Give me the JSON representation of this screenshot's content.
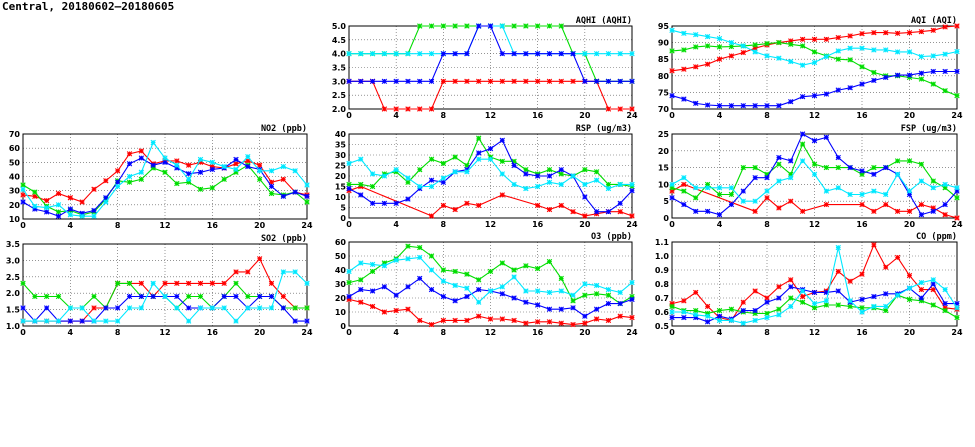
{
  "title": "Central, 20180602–20180605",
  "colors": {
    "red": "#ff0000",
    "green": "#00dd00",
    "blue": "#0000ff",
    "cyan": "#00e8ff"
  },
  "chart_data": [
    {
      "id": "no2",
      "type": "line",
      "title": "NO2 (ppb)",
      "ylim": [
        10,
        70
      ],
      "yticks": [
        "10",
        "20",
        "30",
        "40",
        "50",
        "60",
        "70"
      ],
      "xlim": [
        0,
        24
      ],
      "xticks": [
        "0",
        "4",
        "8",
        "12",
        "16",
        "20",
        "24"
      ],
      "grid": true,
      "series": [
        {
          "name": "red",
          "values": [
            27,
            26,
            23,
            28,
            25,
            22,
            31,
            37,
            44,
            56,
            58,
            49,
            51,
            51,
            48,
            50,
            47,
            46,
            49,
            51,
            48,
            36,
            38,
            29,
            27
          ]
        },
        {
          "name": "green",
          "values": [
            34,
            29,
            19,
            15,
            16,
            13,
            15,
            24,
            37,
            36,
            38,
            46,
            43,
            35,
            36,
            31,
            32,
            38,
            43,
            48,
            38,
            28,
            27,
            29,
            22
          ]
        },
        {
          "name": "blue",
          "values": [
            22,
            17,
            15,
            12,
            17,
            14,
            16,
            25,
            36,
            49,
            53,
            48,
            50,
            46,
            42,
            43,
            45,
            46,
            52,
            47,
            45,
            33,
            26,
            29,
            26
          ]
        },
        {
          "name": "cyan",
          "values": [
            31,
            19,
            18,
            20,
            13,
            12,
            12,
            22,
            33,
            40,
            43,
            64,
            53,
            48,
            38,
            52,
            50,
            47,
            45,
            54,
            44,
            44,
            47,
            44,
            34
          ]
        }
      ]
    },
    {
      "id": "so2",
      "type": "line",
      "title": "SO2 (ppb)",
      "ylim": [
        1.0,
        3.5
      ],
      "yticks": [
        "1.0",
        "1.5",
        "2.0",
        "2.5",
        "3.0",
        "3.5"
      ],
      "xlim": [
        0,
        24
      ],
      "xticks": [
        "0",
        "4",
        "8",
        "12",
        "16",
        "20",
        "24"
      ],
      "grid": true,
      "series": [
        {
          "name": "red",
          "values": [
            1.15,
            1.15,
            1.15,
            1.15,
            1.15,
            1.15,
            1.55,
            1.55,
            2.3,
            2.3,
            2.3,
            1.9,
            2.3,
            2.3,
            2.3,
            2.3,
            2.3,
            2.3,
            2.65,
            2.65,
            3.05,
            2.3,
            1.9,
            1.55,
            1.55
          ]
        },
        {
          "name": "green",
          "values": [
            2.3,
            1.9,
            1.9,
            1.9,
            1.55,
            1.55,
            1.9,
            1.55,
            2.3,
            2.3,
            1.9,
            1.9,
            1.9,
            1.55,
            1.9,
            1.9,
            1.55,
            1.9,
            2.3,
            1.9,
            1.9,
            1.9,
            1.55,
            1.55,
            1.55
          ]
        },
        {
          "name": "blue",
          "values": [
            1.55,
            1.15,
            1.55,
            1.15,
            1.15,
            1.15,
            1.15,
            1.55,
            1.55,
            1.9,
            1.9,
            1.9,
            1.9,
            1.9,
            1.55,
            1.55,
            1.55,
            1.9,
            1.9,
            1.55,
            1.9,
            1.9,
            1.55,
            1.15,
            1.15
          ]
        },
        {
          "name": "cyan",
          "values": [
            1.15,
            1.15,
            1.15,
            1.15,
            1.55,
            1.55,
            1.15,
            1.15,
            1.15,
            1.55,
            1.55,
            2.3,
            1.9,
            1.55,
            1.15,
            1.55,
            1.55,
            1.55,
            1.15,
            1.55,
            1.55,
            1.55,
            2.65,
            2.65,
            2.3
          ]
        }
      ]
    },
    {
      "id": "aqhi",
      "type": "line",
      "title": "AQHI (AQHI)",
      "ylim": [
        2.0,
        5.0
      ],
      "yticks": [
        "2.0",
        "2.5",
        "3.0",
        "3.5",
        "4.0",
        "4.5",
        "5.0"
      ],
      "xlim": [
        0,
        24
      ],
      "xticks": [
        "0",
        "4",
        "8",
        "12",
        "16",
        "20",
        "24"
      ],
      "grid": true,
      "series": [
        {
          "name": "red",
          "values": [
            3,
            3,
            3,
            2,
            2,
            2,
            2,
            2,
            3,
            3,
            3,
            3,
            3,
            3,
            3,
            3,
            3,
            3,
            3,
            3,
            3,
            3,
            2,
            2,
            2
          ]
        },
        {
          "name": "green",
          "values": [
            4,
            4,
            4,
            4,
            4,
            4,
            5,
            5,
            5,
            5,
            5,
            5,
            5,
            5,
            5,
            5,
            5,
            5,
            5,
            4,
            4,
            3,
            3,
            3,
            3
          ]
        },
        {
          "name": "cyan",
          "values": [
            4,
            4,
            4,
            4,
            4,
            4,
            4,
            4,
            4,
            4,
            4,
            5,
            5,
            5,
            4,
            4,
            4,
            4,
            4,
            4,
            4,
            4,
            4,
            4,
            4
          ]
        },
        {
          "name": "blue",
          "values": [
            3,
            3,
            3,
            3,
            3,
            3,
            3,
            3,
            4,
            4,
            4,
            5,
            5,
            4,
            4,
            4,
            4,
            4,
            4,
            4,
            3,
            3,
            3,
            3,
            3
          ]
        }
      ]
    },
    {
      "id": "rsp",
      "type": "line",
      "title": "RSP (ug/m3)",
      "ylim": [
        0,
        40
      ],
      "yticks": [
        "0",
        "5",
        "10",
        "15",
        "20",
        "25",
        "30",
        "35",
        "40"
      ],
      "xlim": [
        0,
        24
      ],
      "xticks": [
        "0",
        "4",
        "8",
        "12",
        "16",
        "20",
        "24"
      ],
      "grid": true,
      "series": [
        {
          "name": "red",
          "values": [
            13,
            15,
            null,
            null,
            null,
            null,
            null,
            1,
            6,
            4,
            7,
            6,
            null,
            11,
            null,
            null,
            6,
            4,
            6,
            3,
            1,
            2,
            3,
            3,
            1
          ]
        },
        {
          "name": "green",
          "values": [
            16,
            16,
            15,
            21,
            22,
            17,
            23,
            28,
            26,
            29,
            25,
            38,
            29,
            27,
            27,
            23,
            21,
            23,
            21,
            20,
            23,
            22,
            16,
            16,
            15
          ]
        },
        {
          "name": "blue",
          "values": [
            14,
            11,
            7,
            7,
            7,
            9,
            14,
            18,
            17,
            22,
            23,
            31,
            33,
            37,
            25,
            21,
            20,
            20,
            23,
            20,
            10,
            3,
            3,
            7,
            13
          ]
        },
        {
          "name": "cyan",
          "values": [
            26,
            28,
            21,
            20,
            23,
            19,
            15,
            15,
            19,
            22,
            22,
            28,
            28,
            21,
            16,
            14,
            15,
            17,
            16,
            20,
            16,
            18,
            14,
            16,
            16
          ]
        }
      ]
    },
    {
      "id": "o3",
      "type": "line",
      "title": "O3 (ppb)",
      "ylim": [
        0,
        60
      ],
      "yticks": [
        "0",
        "10",
        "20",
        "30",
        "40",
        "50",
        "60"
      ],
      "xlim": [
        0,
        24
      ],
      "xticks": [
        "0",
        "4",
        "8",
        "12",
        "16",
        "20",
        "24"
      ],
      "grid": true,
      "series": [
        {
          "name": "red",
          "values": [
            19,
            17,
            14,
            10,
            11,
            12,
            4,
            1,
            4,
            4,
            4,
            7,
            5,
            5,
            4,
            2,
            3,
            3,
            2,
            1,
            2,
            5,
            4,
            7,
            6
          ]
        },
        {
          "name": "green",
          "values": [
            31,
            33,
            39,
            45,
            48,
            57,
            56,
            50,
            40,
            39,
            37,
            33,
            39,
            45,
            40,
            43,
            41,
            46,
            34,
            18,
            22,
            23,
            22,
            16,
            21
          ]
        },
        {
          "name": "blue",
          "values": [
            21,
            26,
            25,
            28,
            22,
            28,
            34,
            26,
            21,
            18,
            21,
            26,
            25,
            23,
            20,
            17,
            15,
            12,
            12,
            13,
            7,
            12,
            16,
            16,
            19
          ]
        },
        {
          "name": "cyan",
          "values": [
            39,
            45,
            44,
            43,
            47,
            48,
            49,
            40,
            32,
            29,
            27,
            17,
            25,
            28,
            35,
            25,
            25,
            24,
            25,
            22,
            30,
            29,
            26,
            24,
            31
          ]
        }
      ]
    },
    {
      "id": "aqi",
      "type": "line",
      "title": "AQI (AQI)",
      "ylim": [
        70,
        95
      ],
      "yticks": [
        "70",
        "75",
        "80",
        "85",
        "90",
        "95"
      ],
      "xlim": [
        0,
        24
      ],
      "xticks": [
        "0",
        "4",
        "8",
        "12",
        "16",
        "20",
        "24"
      ],
      "grid": true,
      "series": [
        {
          "name": "red",
          "values": [
            81.5,
            82,
            82.7,
            83.5,
            85,
            86,
            87,
            88.3,
            89.3,
            90,
            90.5,
            91,
            91,
            91,
            91.5,
            92,
            92.7,
            93,
            93,
            92.8,
            93,
            93.3,
            93.7,
            94.7,
            95
          ]
        },
        {
          "name": "green",
          "values": [
            87.5,
            87.8,
            88.7,
            89,
            88.7,
            88.8,
            89,
            89.3,
            89.7,
            90,
            89.5,
            89,
            87.2,
            86,
            85,
            84.8,
            82.7,
            81,
            80,
            80,
            79.5,
            79,
            77.5,
            75.5,
            74
          ]
        },
        {
          "name": "blue",
          "values": [
            74,
            73,
            71.7,
            71.2,
            71,
            71,
            71,
            71,
            71,
            71,
            72.2,
            73.7,
            74,
            74.5,
            75.7,
            76.4,
            77.5,
            78.6,
            79.5,
            80.2,
            80.2,
            80.8,
            81.3,
            81.3,
            81.3
          ]
        },
        {
          "name": "cyan",
          "values": [
            93.7,
            92.8,
            92.4,
            91.8,
            91.2,
            90,
            89,
            87.2,
            86,
            85.3,
            84.3,
            83.2,
            84,
            85.8,
            87.5,
            88.3,
            88.3,
            87.8,
            87.8,
            87.2,
            87.2,
            85.8,
            86,
            86.5,
            87.3
          ]
        }
      ]
    },
    {
      "id": "fsp",
      "type": "line",
      "title": "FSP (ug/m3)",
      "ylim": [
        0,
        25
      ],
      "yticks": [
        "0",
        "5",
        "10",
        "15",
        "20",
        "25"
      ],
      "xlim": [
        0,
        24
      ],
      "xticks": [
        "0",
        "4",
        "8",
        "12",
        "16",
        "20",
        "24"
      ],
      "grid": true,
      "series": [
        {
          "name": "red",
          "values": [
            8,
            10,
            null,
            null,
            null,
            null,
            null,
            2,
            6,
            3,
            5,
            2,
            null,
            4,
            null,
            null,
            4,
            2,
            4,
            2,
            2,
            4,
            3,
            1,
            0
          ]
        },
        {
          "name": "green",
          "values": [
            9,
            8,
            6,
            10,
            7,
            7,
            15,
            15,
            13,
            16,
            13,
            22,
            16,
            15,
            15,
            15,
            13,
            15,
            15,
            17,
            17,
            16,
            11,
            9,
            6
          ]
        },
        {
          "name": "blue",
          "values": [
            6,
            4,
            2,
            2,
            1,
            4,
            8,
            12,
            12,
            18,
            17,
            25,
            23,
            24,
            18,
            15,
            14,
            13,
            15,
            13,
            7,
            1,
            2,
            4,
            8
          ]
        },
        {
          "name": "cyan",
          "values": [
            10,
            12,
            9,
            9,
            9,
            9,
            5,
            5,
            8,
            11,
            12,
            17,
            13,
            8,
            9,
            7,
            7,
            8,
            7,
            13,
            8,
            11,
            9,
            10,
            9
          ]
        }
      ]
    },
    {
      "id": "co",
      "type": "line",
      "title": "CO (ppm)",
      "ylim": [
        0.5,
        1.1
      ],
      "yticks": [
        "0.5",
        "0.6",
        "0.7",
        "0.8",
        "0.9",
        "1.0",
        "1.1"
      ],
      "xlim": [
        0,
        24
      ],
      "xticks": [
        "0",
        "4",
        "8",
        "12",
        "16",
        "20",
        "24"
      ],
      "grid": true,
      "series": [
        {
          "name": "red",
          "values": [
            0.66,
            0.68,
            0.74,
            0.64,
            0.56,
            0.54,
            0.67,
            0.75,
            0.7,
            0.78,
            0.83,
            0.71,
            0.74,
            0.75,
            0.89,
            0.82,
            0.87,
            1.08,
            0.92,
            0.99,
            0.86,
            0.76,
            0.76,
            0.63,
            0.62
          ]
        },
        {
          "name": "green",
          "values": [
            0.64,
            0.61,
            0.61,
            0.59,
            0.61,
            0.62,
            0.6,
            0.59,
            0.59,
            0.62,
            0.7,
            0.67,
            0.63,
            0.65,
            0.65,
            0.64,
            0.63,
            0.63,
            0.61,
            0.72,
            0.69,
            0.68,
            0.65,
            0.61,
            0.56
          ]
        },
        {
          "name": "blue",
          "values": [
            0.56,
            0.56,
            0.56,
            0.53,
            0.57,
            0.55,
            0.61,
            0.61,
            0.67,
            0.7,
            0.78,
            0.76,
            0.74,
            0.74,
            0.75,
            0.67,
            0.69,
            0.71,
            0.73,
            0.73,
            0.77,
            0.7,
            0.8,
            0.66,
            0.66
          ]
        },
        {
          "name": "cyan",
          "values": [
            0.6,
            0.6,
            0.58,
            0.57,
            0.54,
            0.54,
            0.52,
            0.54,
            0.56,
            0.58,
            0.64,
            0.75,
            0.66,
            0.68,
            1.06,
            0.68,
            0.6,
            0.64,
            0.64,
            0.72,
            0.77,
            0.81,
            0.83,
            0.76,
            0.63
          ]
        }
      ]
    }
  ]
}
